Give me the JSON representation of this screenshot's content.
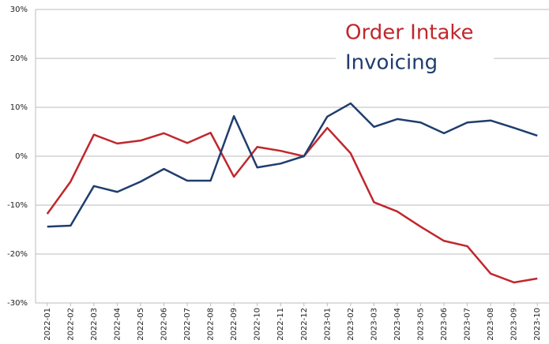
{
  "chart_data": {
    "type": "line",
    "categories": [
      "2022-01",
      "2022-02",
      "2022-03",
      "2022-04",
      "2022-05",
      "2022-06",
      "2022-07",
      "2022-08",
      "2022-09",
      "2022-10",
      "2022-11",
      "2022-12",
      "2023-01",
      "2023-02",
      "2023-03",
      "2023-04",
      "2023-05",
      "2023-06",
      "2023-07",
      "2023-08",
      "2023-09",
      "2023-10"
    ],
    "series": [
      {
        "name": "Order Intake",
        "color": "#c0272d",
        "values": [
          -11.8,
          -5.2,
          4.4,
          2.6,
          3.2,
          4.7,
          2.7,
          4.8,
          -4.2,
          1.9,
          1.1,
          0,
          5.8,
          0.6,
          -9.4,
          -11.3,
          -14.4,
          -17.3,
          -18.4,
          -24.0,
          -25.8,
          -25.0
        ]
      },
      {
        "name": "Invoicing",
        "color": "#1f3d6e",
        "values": [
          -14.4,
          -14.2,
          -6.1,
          -7.3,
          -5.2,
          -2.6,
          -5.0,
          -5.0,
          8.2,
          -2.3,
          -1.5,
          0,
          8.1,
          10.8,
          6.0,
          7.6,
          6.9,
          4.7,
          6.9,
          7.3,
          5.8,
          4.2
        ]
      }
    ],
    "ylim": [
      -30,
      30
    ],
    "yticks": [
      {
        "value": -30,
        "label": "-30%"
      },
      {
        "value": -20,
        "label": "-20%"
      },
      {
        "value": -10,
        "label": "-10%"
      },
      {
        "value": 0,
        "label": "0%"
      },
      {
        "value": 10,
        "label": "10%"
      },
      {
        "value": 20,
        "label": "20%"
      },
      {
        "value": 30,
        "label": "30%"
      }
    ],
    "grid": true,
    "legend": "top-right"
  }
}
